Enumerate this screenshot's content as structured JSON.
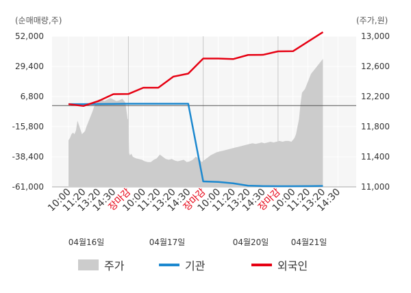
{
  "left_axis_label": "(순매매량,주)",
  "right_axis_label": "(주가,원)",
  "chart_data": {
    "type": "line",
    "left_axis": {
      "range": [
        -61000,
        52000
      ],
      "ticks": [
        52000,
        29400,
        6800,
        -15800,
        -38400,
        -61000
      ],
      "tick_labels": [
        "52,000",
        "29,400",
        "6,800",
        "-15,800",
        "-38,400",
        "-61,000"
      ]
    },
    "right_axis": {
      "range": [
        11000,
        13000
      ],
      "ticks": [
        13000,
        12600,
        12200,
        11800,
        11400,
        11000
      ],
      "tick_labels": [
        "13,000",
        "12,600",
        "12,200",
        "11,800",
        "11,400",
        "11,000"
      ]
    },
    "x_tick_labels": [
      {
        "text": "10:00",
        "color": "#333333"
      },
      {
        "text": "11:20",
        "color": "#333333"
      },
      {
        "text": "13:20",
        "color": "#333333"
      },
      {
        "text": "14:30",
        "color": "#333333"
      },
      {
        "text": "장마감",
        "color": "#e60012"
      },
      {
        "text": "10:00",
        "color": "#333333"
      },
      {
        "text": "11:20",
        "color": "#333333"
      },
      {
        "text": "13:20",
        "color": "#333333"
      },
      {
        "text": "14:30",
        "color": "#333333"
      },
      {
        "text": "장마감",
        "color": "#e60012"
      },
      {
        "text": "10:00",
        "color": "#333333"
      },
      {
        "text": "11:20",
        "color": "#333333"
      },
      {
        "text": "13:20",
        "color": "#333333"
      },
      {
        "text": "14:30",
        "color": "#333333"
      },
      {
        "text": "장마감",
        "color": "#e60012"
      },
      {
        "text": "10:00",
        "color": "#333333"
      },
      {
        "text": "11:20",
        "color": "#333333"
      },
      {
        "text": "13:20",
        "color": "#333333"
      },
      {
        "text": "14:30",
        "color": "#333333"
      }
    ],
    "date_labels": [
      "04월16일",
      "04월17일",
      "04월20일",
      "04월21일"
    ],
    "zero_line_value": 0,
    "series": [
      {
        "name": "주가",
        "axis": "right",
        "style": "area",
        "color": "#cccccc",
        "x": [
          0,
          0.1,
          0.2,
          0.3,
          0.4,
          0.5,
          0.6,
          0.7,
          0.8,
          0.9,
          1.0,
          1.1,
          1.2,
          1.3,
          1.4,
          1.5,
          1.6,
          1.7,
          1.8,
          1.9,
          2.0,
          2.2,
          2.4,
          2.6,
          2.8,
          3.0,
          3.2,
          3.4,
          3.6,
          3.8,
          3.95,
          4.0,
          4.05,
          4.1,
          4.2,
          4.3,
          4.5,
          4.7,
          4.9,
          5.1,
          5.3,
          5.5,
          5.7,
          5.9,
          6.1,
          6.3,
          6.5,
          6.7,
          6.9,
          7.1,
          7.3,
          7.5,
          7.7,
          7.9,
          8.1,
          8.3,
          8.5,
          8.7,
          8.9,
          9.1,
          9.3,
          9.5,
          9.7,
          9.9,
          10.1,
          10.3,
          10.5,
          10.7,
          10.9,
          11.1,
          11.3,
          11.5,
          11.7,
          11.9,
          12.1,
          12.3,
          12.5,
          12.7,
          12.9,
          13.1,
          13.3,
          13.5,
          13.7,
          13.9,
          14.1,
          14.3,
          14.5,
          14.7,
          14.9,
          15.1,
          15.2,
          15.3,
          15.4,
          15.5,
          15.6,
          15.8,
          16.0,
          16.2,
          16.4,
          16.6,
          16.8,
          17.0
        ],
        "values": [
          11620,
          11650,
          11700,
          11720,
          11700,
          11750,
          11880,
          11820,
          11760,
          11700,
          11720,
          11740,
          11800,
          11850,
          11900,
          11950,
          12000,
          12060,
          12100,
          12120,
          12160,
          12160,
          12140,
          12160,
          12180,
          12160,
          12140,
          12150,
          12170,
          12120,
          11900,
          11900,
          11450,
          11420,
          11440,
          11400,
          11380,
          11370,
          11360,
          11340,
          11330,
          11330,
          11360,
          11380,
          11430,
          11400,
          11370,
          11360,
          11370,
          11350,
          11340,
          11350,
          11360,
          11330,
          11340,
          11360,
          11400,
          11380,
          11330,
          11360,
          11390,
          11420,
          11440,
          11460,
          11470,
          11480,
          11490,
          11500,
          11510,
          11520,
          11530,
          11540,
          11550,
          11560,
          11570,
          11580,
          11570,
          11580,
          11590,
          11580,
          11590,
          11600,
          11590,
          11600,
          11610,
          11600,
          11610,
          11610,
          11600,
          11650,
          11700,
          11800,
          11900,
          12100,
          12250,
          12300,
          12400,
          12500,
          12550,
          12600,
          12650,
          12700
        ]
      },
      {
        "name": "기관",
        "axis": "left",
        "style": "line",
        "color": "#1c88cf",
        "x": [
          0,
          1,
          2,
          3,
          4,
          5,
          6,
          7,
          8,
          9,
          10,
          11,
          12,
          13,
          14,
          15,
          16,
          17
        ],
        "values": [
          1100,
          1100,
          1200,
          1300,
          1400,
          1400,
          1400,
          1400,
          1400,
          -56900,
          -57300,
          -58300,
          -60100,
          -60400,
          -60500,
          -60500,
          -60400,
          -60300
        ]
      },
      {
        "name": "외국인",
        "axis": "left",
        "style": "line",
        "color": "#e60012",
        "x": [
          0,
          1,
          2,
          3,
          4,
          5,
          6,
          7,
          8,
          9,
          10,
          11,
          12,
          13,
          14,
          15,
          16,
          17
        ],
        "values": [
          1100,
          -300,
          3400,
          8600,
          8700,
          13400,
          13400,
          21700,
          24000,
          35300,
          35300,
          34900,
          38000,
          38100,
          40700,
          40800,
          48000,
          55100
        ]
      }
    ]
  }
}
